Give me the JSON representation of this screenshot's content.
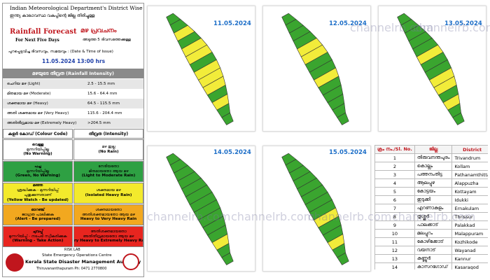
{
  "header": {
    "title": "Indian Meteorological Department's District Wise",
    "subtitle_ml": "ഇന്ത്യ കാലാവസ്ഥ വകുപ്പിന്റെ ജില്ല തിരിച്ചുള്ള",
    "forecast_title": "Rainfall Forecast",
    "forecast_ml": "മഴ പ്രവചനം",
    "forecast_sub": "For Next Five Days",
    "forecast_sub_ml": "അടുത്ത 5 ദിവസത്തേക്കുള്ള",
    "issue_label": "പുറപ്പെടുവിച്ച ദിവസവും, സമയവും : (Date & Time of Issue)",
    "issue_time": "11.05.2024 13:00 hrs"
  },
  "intensity": {
    "heading": "മഴയുടെ തീവ്രത (Rainfall Intensity)",
    "rows": [
      [
        "ചെറിയ മഴ (Light)",
        "2.5 - 15.5 mm"
      ],
      [
        "മിതമായ മഴ (Moderate)",
        "15.6 - 64.4 mm"
      ],
      [
        "ശക്തമായ മഴ (Heavy)",
        "64.5 - 115.5 mm"
      ],
      [
        "അതി ശക്തമായ മഴ (Very Heavy)",
        "115.6 - 204.4 mm"
      ],
      [
        "അതിതീവ്രമായ മഴ (Extremely Heavy)",
        ">204.5 mm"
      ]
    ]
  },
  "color_code": {
    "headings": [
      "കളർ കോഡ് (Colour Code)",
      "തീവ്രത (Intensity)"
    ],
    "rows": [
      {
        "color": "#ffffff",
        "code": [
          "വെള്ള",
          "മുന്നറിയിപ്പില്ല",
          "(No Warning)"
        ],
        "intensity": [
          "മഴ ഇല്ല",
          "(No Rain)"
        ]
      },
      {
        "color": "#2ea043",
        "code": [
          "പച്ച",
          "മുന്നറിയിപ്പില്ല",
          "(Green, No Warning)"
        ],
        "intensity": [
          "നേരിയതോ",
          "മിതമായതോ ആയ മഴ",
          "(Light to Moderate Rain)"
        ]
      },
      {
        "color": "#f3ea2c",
        "code": [
          "മഞ്ഞ",
          "ശ്രദ്ധിക്കുക - മുന്നറിയിപ്പ്",
          "പുതുക്കുന്നതാണ്",
          "(Yellow Watch - Be updated)"
        ],
        "intensity": [
          "ശക്തമായ മഴ",
          "(Isolated Heavy Rain)"
        ]
      },
      {
        "color": "#f2a81f",
        "code": [
          "ഓറഞ്ച്",
          "ജാഗ്രത പാലിക്കുക",
          "(Alert - Be prepared)"
        ],
        "intensity": [
          "ശക്തമായതോ",
          "അതിശക്തമായതോ ആയ മഴ",
          "Heavy to Very Heavy Rain"
        ]
      },
      {
        "color": "#e8251f",
        "code": [
          "ചുവപ്പ്",
          "മുന്നറിയിപ്പ് - നടപടി സ്വീകരിക്കുക",
          "(Warning - Take Action)"
        ],
        "intensity": [
          "അതിശക്തമായതോ",
          "അതിതീവ്രമായതോ ആയ മഴ",
          "Very Heavy to Extremely Heavy Rain"
        ]
      }
    ]
  },
  "footer": {
    "lab": "RISK LAB",
    "centre": "State Emergency Operations Centre",
    "authority": "Kerala State Disaster Management Authority",
    "contact": "Thiruvananthapuram Ph: 0471 2770800"
  },
  "watermark": "channelrb.com",
  "alert_colors": {
    "green": "#3aa52f",
    "yellow": "#f2ec3a"
  },
  "maps": [
    {
      "date": "11.05.2024",
      "alerts": [
        "green",
        "green",
        "yellow",
        "green",
        "yellow",
        "yellow",
        "yellow",
        "green",
        "yellow",
        "yellow",
        "green",
        "yellow",
        "green",
        "green"
      ]
    },
    {
      "date": "12.05.2024",
      "alerts": [
        "green",
        "green",
        "green",
        "green",
        "green",
        "yellow",
        "green",
        "green",
        "yellow",
        "yellow",
        "green",
        "green",
        "green",
        "green"
      ]
    },
    {
      "date": "13.05.2024",
      "alerts": [
        "green",
        "green",
        "yellow",
        "green",
        "yellow",
        "yellow",
        "green",
        "green",
        "yellow",
        "green",
        "green",
        "green",
        "green",
        "green"
      ]
    },
    {
      "date": "14.05.2024",
      "alerts": [
        "green",
        "green",
        "yellow",
        "green",
        "green",
        "green",
        "green",
        "green",
        "green",
        "green",
        "green",
        "green",
        "green",
        "green"
      ]
    },
    {
      "date": "15.05.2024",
      "alerts": [
        "green",
        "green",
        "yellow",
        "green",
        "green",
        "yellow",
        "green",
        "green",
        "green",
        "green",
        "green",
        "green",
        "green",
        "green"
      ]
    }
  ],
  "table": {
    "headers": [
      "ക്രം നം./Sl. No.",
      "ജില്ല",
      "District"
    ],
    "rows": [
      [
        "1",
        "തിരുവനന്തപുരം",
        "Trivandrum"
      ],
      [
        "2",
        "കൊല്ലം",
        "Kollam"
      ],
      [
        "3",
        "പത്തനംതിട്ട",
        "Pathanamthitta"
      ],
      [
        "4",
        "ആലപ്പുഴ",
        "Alappuzha"
      ],
      [
        "5",
        "കോട്ടയം",
        "Kottayam"
      ],
      [
        "6",
        "ഇടുക്കി",
        "Idukki"
      ],
      [
        "7",
        "എറണാകുളം",
        "Ernakulam"
      ],
      [
        "8",
        "തൃശ്ശൂർ",
        "Thrissur"
      ],
      [
        "9",
        "പാലക്കാട്",
        "Palakkad"
      ],
      [
        "10",
        "മലപ്പുറം",
        "Malappuram"
      ],
      [
        "11",
        "കോഴിക്കോട്",
        "Kozhikode"
      ],
      [
        "12",
        "വയനാട്",
        "Wayanad"
      ],
      [
        "13",
        "കണ്ണൂർ",
        "Kannur"
      ],
      [
        "14",
        "കാസറഗോഡ്",
        "Kasaragod"
      ]
    ]
  }
}
